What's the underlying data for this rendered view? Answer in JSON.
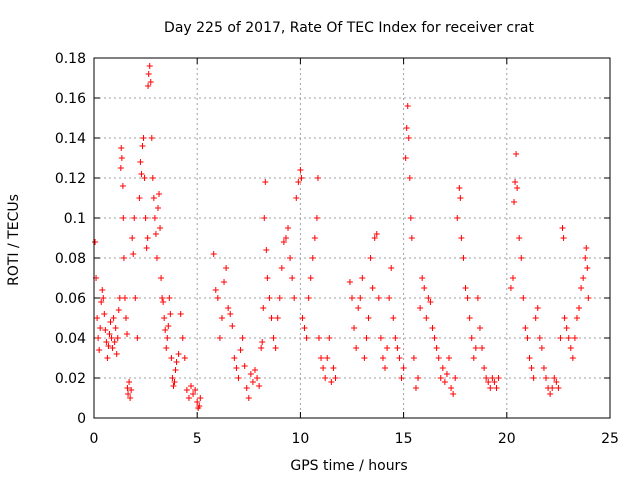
{
  "chart_data": {
    "type": "scatter",
    "title": "Day 225 of 2017, Rate Of TEC Index for receiver crat",
    "xlabel": "GPS time / hours",
    "ylabel": "ROTI / TECUs",
    "xlim": [
      0,
      25
    ],
    "ylim": [
      0,
      0.18
    ],
    "xticks": [
      "0",
      "5",
      "10",
      "15",
      "20",
      "25"
    ],
    "yticks": [
      "0",
      "0.02",
      "0.04",
      "0.06",
      "0.08",
      "0.1",
      "0.12",
      "0.14",
      "0.16",
      "0.18"
    ],
    "grid": true,
    "marker": "+",
    "color": "#ff0000",
    "points": [
      [
        0.05,
        0.088
      ],
      [
        0.1,
        0.07
      ],
      [
        0.15,
        0.05
      ],
      [
        0.2,
        0.04
      ],
      [
        0.25,
        0.034
      ],
      [
        0.3,
        0.045
      ],
      [
        0.35,
        0.058
      ],
      [
        0.4,
        0.064
      ],
      [
        0.45,
        0.06
      ],
      [
        0.5,
        0.052
      ],
      [
        0.55,
        0.044
      ],
      [
        0.6,
        0.038
      ],
      [
        0.65,
        0.03
      ],
      [
        0.7,
        0.036
      ],
      [
        0.75,
        0.042
      ],
      [
        0.8,
        0.048
      ],
      [
        0.85,
        0.04
      ],
      [
        0.9,
        0.035
      ],
      [
        0.95,
        0.05
      ],
      [
        1.0,
        0.038
      ],
      [
        1.05,
        0.045
      ],
      [
        1.1,
        0.032
      ],
      [
        1.15,
        0.04
      ],
      [
        1.2,
        0.054
      ],
      [
        1.25,
        0.06
      ],
      [
        1.3,
        0.125
      ],
      [
        1.32,
        0.135
      ],
      [
        1.35,
        0.13
      ],
      [
        1.4,
        0.116
      ],
      [
        1.42,
        0.1
      ],
      [
        1.45,
        0.08
      ],
      [
        1.5,
        0.06
      ],
      [
        1.55,
        0.05
      ],
      [
        1.6,
        0.042
      ],
      [
        1.62,
        0.015
      ],
      [
        1.65,
        0.012
      ],
      [
        1.7,
        0.018
      ],
      [
        1.75,
        0.01
      ],
      [
        1.8,
        0.014
      ],
      [
        1.85,
        0.09
      ],
      [
        1.9,
        0.082
      ],
      [
        1.95,
        0.1
      ],
      [
        2.0,
        0.06
      ],
      [
        2.1,
        0.04
      ],
      [
        2.2,
        0.11
      ],
      [
        2.25,
        0.128
      ],
      [
        2.3,
        0.122
      ],
      [
        2.35,
        0.136
      ],
      [
        2.4,
        0.14
      ],
      [
        2.45,
        0.12
      ],
      [
        2.5,
        0.1
      ],
      [
        2.55,
        0.085
      ],
      [
        2.6,
        0.09
      ],
      [
        2.62,
        0.166
      ],
      [
        2.65,
        0.172
      ],
      [
        2.7,
        0.176
      ],
      [
        2.75,
        0.168
      ],
      [
        2.8,
        0.14
      ],
      [
        2.85,
        0.12
      ],
      [
        2.9,
        0.11
      ],
      [
        2.95,
        0.1
      ],
      [
        3.0,
        0.092
      ],
      [
        3.05,
        0.08
      ],
      [
        3.1,
        0.105
      ],
      [
        3.15,
        0.112
      ],
      [
        3.2,
        0.095
      ],
      [
        3.25,
        0.07
      ],
      [
        3.3,
        0.06
      ],
      [
        3.35,
        0.058
      ],
      [
        3.4,
        0.05
      ],
      [
        3.45,
        0.044
      ],
      [
        3.5,
        0.035
      ],
      [
        3.55,
        0.04
      ],
      [
        3.6,
        0.046
      ],
      [
        3.65,
        0.06
      ],
      [
        3.7,
        0.052
      ],
      [
        3.75,
        0.03
      ],
      [
        3.8,
        0.02
      ],
      [
        3.85,
        0.016
      ],
      [
        3.9,
        0.018
      ],
      [
        3.95,
        0.024
      ],
      [
        4.0,
        0.028
      ],
      [
        4.1,
        0.032
      ],
      [
        4.2,
        0.052
      ],
      [
        4.3,
        0.04
      ],
      [
        4.4,
        0.03
      ],
      [
        4.5,
        0.014
      ],
      [
        4.6,
        0.01
      ],
      [
        4.7,
        0.016
      ],
      [
        4.8,
        0.012
      ],
      [
        4.9,
        0.014
      ],
      [
        5.0,
        0.008
      ],
      [
        5.05,
        0.005
      ],
      [
        5.1,
        0.006
      ],
      [
        5.15,
        0.01
      ],
      [
        5.8,
        0.082
      ],
      [
        5.9,
        0.064
      ],
      [
        6.0,
        0.06
      ],
      [
        6.1,
        0.04
      ],
      [
        6.2,
        0.05
      ],
      [
        6.3,
        0.068
      ],
      [
        6.4,
        0.075
      ],
      [
        6.5,
        0.055
      ],
      [
        6.6,
        0.052
      ],
      [
        6.7,
        0.046
      ],
      [
        6.8,
        0.03
      ],
      [
        6.9,
        0.025
      ],
      [
        7.0,
        0.02
      ],
      [
        7.1,
        0.034
      ],
      [
        7.2,
        0.04
      ],
      [
        7.3,
        0.026
      ],
      [
        7.4,
        0.015
      ],
      [
        7.5,
        0.01
      ],
      [
        7.6,
        0.022
      ],
      [
        7.7,
        0.018
      ],
      [
        7.8,
        0.024
      ],
      [
        7.9,
        0.02
      ],
      [
        8.0,
        0.016
      ],
      [
        8.1,
        0.035
      ],
      [
        8.15,
        0.038
      ],
      [
        8.2,
        0.055
      ],
      [
        8.25,
        0.1
      ],
      [
        8.3,
        0.118
      ],
      [
        8.35,
        0.084
      ],
      [
        8.4,
        0.07
      ],
      [
        8.5,
        0.06
      ],
      [
        8.6,
        0.05
      ],
      [
        8.7,
        0.04
      ],
      [
        8.8,
        0.035
      ],
      [
        8.9,
        0.05
      ],
      [
        9.0,
        0.06
      ],
      [
        9.1,
        0.075
      ],
      [
        9.2,
        0.088
      ],
      [
        9.3,
        0.09
      ],
      [
        9.4,
        0.095
      ],
      [
        9.5,
        0.08
      ],
      [
        9.6,
        0.07
      ],
      [
        9.7,
        0.06
      ],
      [
        9.8,
        0.11
      ],
      [
        9.9,
        0.118
      ],
      [
        10.0,
        0.124
      ],
      [
        10.05,
        0.12
      ],
      [
        10.1,
        0.05
      ],
      [
        10.2,
        0.045
      ],
      [
        10.3,
        0.04
      ],
      [
        10.4,
        0.06
      ],
      [
        10.5,
        0.07
      ],
      [
        10.6,
        0.08
      ],
      [
        10.7,
        0.09
      ],
      [
        10.8,
        0.1
      ],
      [
        10.85,
        0.12
      ],
      [
        10.9,
        0.04
      ],
      [
        11.0,
        0.03
      ],
      [
        11.1,
        0.025
      ],
      [
        11.2,
        0.02
      ],
      [
        11.3,
        0.03
      ],
      [
        11.4,
        0.04
      ],
      [
        11.5,
        0.018
      ],
      [
        11.6,
        0.025
      ],
      [
        11.7,
        0.02
      ],
      [
        12.4,
        0.068
      ],
      [
        12.5,
        0.06
      ],
      [
        12.6,
        0.045
      ],
      [
        12.7,
        0.035
      ],
      [
        12.8,
        0.055
      ],
      [
        12.9,
        0.06
      ],
      [
        13.0,
        0.07
      ],
      [
        13.1,
        0.03
      ],
      [
        13.2,
        0.04
      ],
      [
        13.3,
        0.05
      ],
      [
        13.4,
        0.08
      ],
      [
        13.5,
        0.065
      ],
      [
        13.6,
        0.09
      ],
      [
        13.7,
        0.092
      ],
      [
        13.8,
        0.06
      ],
      [
        13.9,
        0.04
      ],
      [
        14.0,
        0.03
      ],
      [
        14.1,
        0.025
      ],
      [
        14.2,
        0.035
      ],
      [
        14.3,
        0.06
      ],
      [
        14.4,
        0.075
      ],
      [
        14.5,
        0.05
      ],
      [
        14.6,
        0.04
      ],
      [
        14.7,
        0.035
      ],
      [
        14.8,
        0.03
      ],
      [
        14.9,
        0.02
      ],
      [
        15.0,
        0.025
      ],
      [
        15.1,
        0.13
      ],
      [
        15.15,
        0.145
      ],
      [
        15.2,
        0.156
      ],
      [
        15.25,
        0.14
      ],
      [
        15.3,
        0.12
      ],
      [
        15.35,
        0.1
      ],
      [
        15.4,
        0.09
      ],
      [
        15.5,
        0.03
      ],
      [
        15.6,
        0.015
      ],
      [
        15.7,
        0.02
      ],
      [
        15.8,
        0.055
      ],
      [
        15.9,
        0.07
      ],
      [
        16.0,
        0.065
      ],
      [
        16.1,
        0.05
      ],
      [
        16.2,
        0.06
      ],
      [
        16.3,
        0.058
      ],
      [
        16.4,
        0.045
      ],
      [
        16.5,
        0.04
      ],
      [
        16.6,
        0.035
      ],
      [
        16.7,
        0.03
      ],
      [
        16.8,
        0.02
      ],
      [
        16.9,
        0.025
      ],
      [
        17.0,
        0.018
      ],
      [
        17.1,
        0.022
      ],
      [
        17.2,
        0.03
      ],
      [
        17.3,
        0.015
      ],
      [
        17.4,
        0.012
      ],
      [
        17.5,
        0.02
      ],
      [
        17.6,
        0.1
      ],
      [
        17.7,
        0.115
      ],
      [
        17.75,
        0.11
      ],
      [
        17.8,
        0.09
      ],
      [
        17.9,
        0.08
      ],
      [
        18.0,
        0.065
      ],
      [
        18.1,
        0.06
      ],
      [
        18.2,
        0.05
      ],
      [
        18.3,
        0.04
      ],
      [
        18.4,
        0.03
      ],
      [
        18.5,
        0.035
      ],
      [
        18.6,
        0.06
      ],
      [
        18.7,
        0.045
      ],
      [
        18.8,
        0.035
      ],
      [
        18.9,
        0.025
      ],
      [
        19.0,
        0.02
      ],
      [
        19.1,
        0.018
      ],
      [
        19.2,
        0.015
      ],
      [
        19.3,
        0.02
      ],
      [
        19.4,
        0.018
      ],
      [
        19.5,
        0.015
      ],
      [
        19.6,
        0.02
      ],
      [
        20.2,
        0.065
      ],
      [
        20.3,
        0.07
      ],
      [
        20.35,
        0.108
      ],
      [
        20.4,
        0.118
      ],
      [
        20.45,
        0.132
      ],
      [
        20.5,
        0.115
      ],
      [
        20.6,
        0.09
      ],
      [
        20.7,
        0.08
      ],
      [
        20.8,
        0.06
      ],
      [
        20.9,
        0.045
      ],
      [
        21.0,
        0.04
      ],
      [
        21.1,
        0.03
      ],
      [
        21.2,
        0.025
      ],
      [
        21.3,
        0.02
      ],
      [
        21.4,
        0.05
      ],
      [
        21.5,
        0.055
      ],
      [
        21.6,
        0.04
      ],
      [
        21.7,
        0.035
      ],
      [
        21.8,
        0.025
      ],
      [
        21.9,
        0.02
      ],
      [
        22.0,
        0.015
      ],
      [
        22.1,
        0.012
      ],
      [
        22.2,
        0.015
      ],
      [
        22.3,
        0.02
      ],
      [
        22.4,
        0.018
      ],
      [
        22.5,
        0.015
      ],
      [
        22.6,
        0.04
      ],
      [
        22.7,
        0.095
      ],
      [
        22.75,
        0.09
      ],
      [
        22.8,
        0.05
      ],
      [
        22.9,
        0.045
      ],
      [
        23.0,
        0.04
      ],
      [
        23.1,
        0.035
      ],
      [
        23.2,
        0.03
      ],
      [
        23.3,
        0.04
      ],
      [
        23.4,
        0.05
      ],
      [
        23.5,
        0.055
      ],
      [
        23.6,
        0.065
      ],
      [
        23.7,
        0.07
      ],
      [
        23.8,
        0.08
      ],
      [
        23.85,
        0.085
      ],
      [
        23.9,
        0.075
      ],
      [
        23.95,
        0.06
      ]
    ]
  }
}
